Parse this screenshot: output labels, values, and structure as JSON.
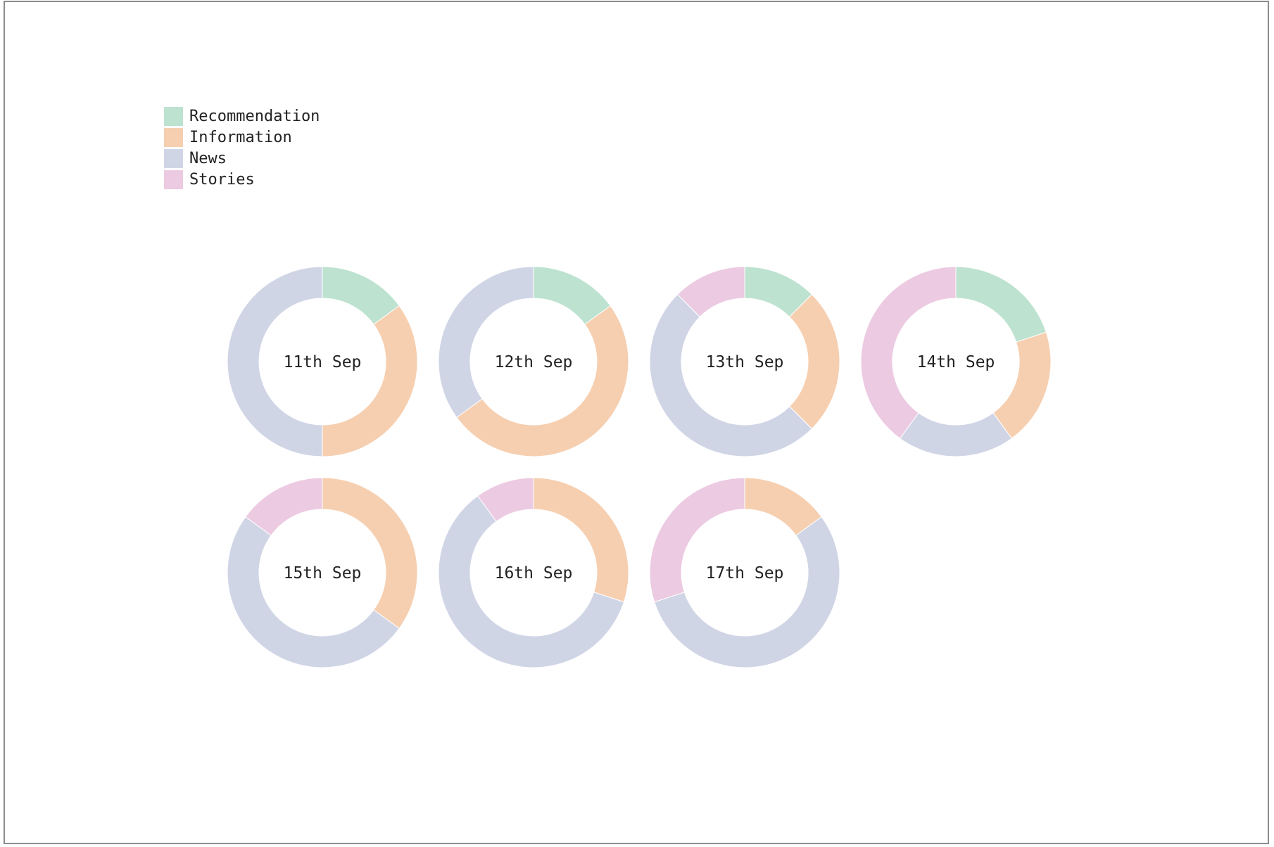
{
  "chart_data": {
    "type": "pie",
    "variant": "donut",
    "legend": {
      "placement": "top-left",
      "entries": [
        "Recommendation",
        "Information",
        "News",
        "Stories"
      ]
    },
    "series_colors": {
      "Recommendation": "#bde2d0",
      "Information": "#f6cfb0",
      "News": "#d0d5e6",
      "Stories": "#eccae1"
    },
    "categories": [
      "Recommendation",
      "Information",
      "News",
      "Stories"
    ],
    "charts": [
      {
        "label": "11th Sep",
        "values": {
          "Recommendation": 15,
          "Information": 35,
          "News": 50,
          "Stories": 0
        }
      },
      {
        "label": "12th Sep",
        "values": {
          "Recommendation": 15,
          "Information": 50,
          "News": 35,
          "Stories": 0
        }
      },
      {
        "label": "13th Sep",
        "values": {
          "Recommendation": 12.5,
          "Information": 25,
          "News": 50,
          "Stories": 12.5
        }
      },
      {
        "label": "14th Sep",
        "values": {
          "Recommendation": 20,
          "Information": 20,
          "News": 20,
          "Stories": 40
        }
      },
      {
        "label": "15th Sep",
        "values": {
          "Recommendation": 0,
          "Information": 35,
          "News": 50,
          "Stories": 15
        }
      },
      {
        "label": "16th Sep",
        "values": {
          "Recommendation": 0,
          "Information": 30,
          "News": 60,
          "Stories": 10
        }
      },
      {
        "label": "17th Sep",
        "values": {
          "Recommendation": 0,
          "Information": 15,
          "News": 55,
          "Stories": 30
        }
      }
    ]
  }
}
